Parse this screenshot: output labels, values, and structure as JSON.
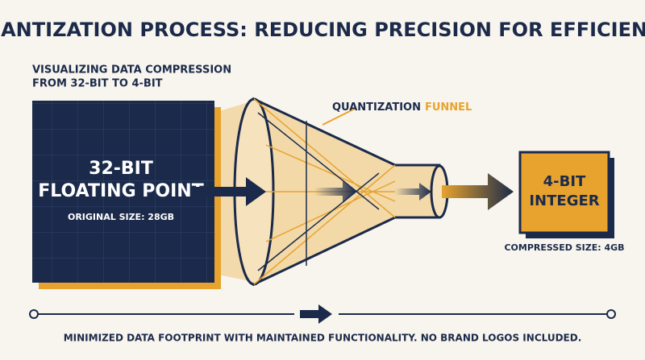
{
  "header": {
    "title": "QUANTIZATION PROCESS: REDUCING PRECISION FOR EFFICIENCY",
    "subtitle": [
      "VISUALIZING DATA COMPRESSION",
      "FROM 32-BIT TO 4-BIT"
    ]
  },
  "input": {
    "label": [
      "32-BIT",
      "FLOATING POINT"
    ],
    "size": "ORIGINAL SIZE: 28GB"
  },
  "funnel": {
    "label": "QUANTIZATION",
    "accent": "FUNNEL"
  },
  "output": {
    "label": [
      "4-BIT",
      "INTEGER"
    ],
    "size": "COMPRESSED SIZE: 4GB"
  },
  "footer": "MINIMIZED DATA FOOTPRINT WITH MAINTAINED FUNCTIONALITY. NO BRAND LOGOS INCLUDED."
}
